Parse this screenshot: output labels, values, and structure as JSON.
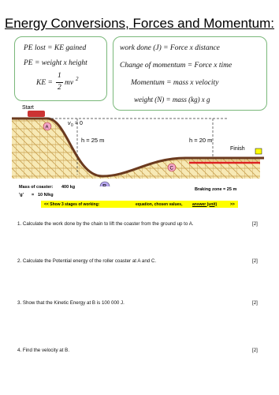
{
  "header": {
    "title": "Energy Conversions, Forces and Momentum:"
  },
  "left_box": {
    "lines": [
      "PE lost = KE gained",
      "PE = weight x height"
    ],
    "ke": {
      "lhs": "KE =",
      "num": "1",
      "den": "2",
      "rhs": "mv",
      "power": "2"
    }
  },
  "right_box": {
    "lines": [
      "work done (J) = Force x distance",
      "Change of momentum = Force x time",
      "Momentum = mass x velocity",
      "weight (N) = mass (kg)  x g"
    ]
  },
  "diagram": {
    "start": "Start",
    "a": "A",
    "v0": "v",
    "v0_sub": "0",
    "v0_eq": "= 0",
    "h1": "h = 25 m",
    "h2": "h = 20 m",
    "finish": "Finish",
    "b": "B",
    "c": "C",
    "braking": "Braking zone = 25 m"
  },
  "info": {
    "mass_label": "Mass of coaster:",
    "mass_value": "400 kg",
    "g_label": "'g'",
    "g_eq": "=",
    "g_value": "10  N/kg"
  },
  "banner": {
    "start": "<<   Show 3 stages of working:",
    "middle": "equation, chosen values,",
    "underlined": "answer (unit)",
    "end": ">>"
  },
  "questions": [
    {
      "text": "1. Calculate the work done by the chain to lift the coaster from the ground up to A.",
      "marks": "[2]"
    },
    {
      "text": "2. Calculate the Potential energy of the roller coaster at A and C.",
      "marks": "[2]"
    },
    {
      "text": "3. Show that the Kinetic Energy at B is 100 000 J.",
      "marks": "[2]"
    },
    {
      "text": "4. Find the velocity at B.",
      "marks": "[2]"
    }
  ]
}
